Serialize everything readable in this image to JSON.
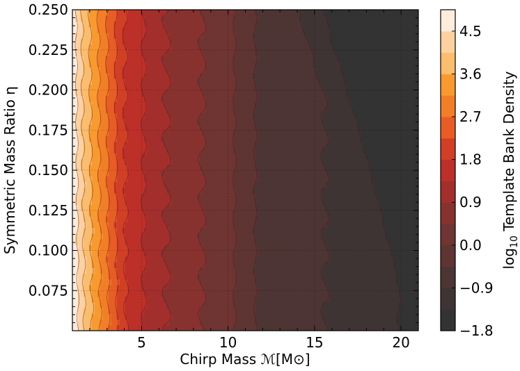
{
  "chart_data": {
    "type": "heatmap",
    "title": "",
    "xlabel": "Chirp Mass ℳ[M⊙]",
    "ylabel": "Symmetric Mass Ratio η",
    "colorbar_label": "log10 Template Bank Density",
    "colorbar_label_parts": {
      "base": "log",
      "subscript": "10",
      "rest": " Template Bank Density"
    },
    "xlim": [
      1.0,
      21.0
    ],
    "ylim": [
      0.05,
      0.25
    ],
    "x_ticks": [
      5,
      10,
      15,
      20
    ],
    "x_tick_labels": [
      "5",
      "10",
      "15",
      "20"
    ],
    "y_ticks": [
      0.075,
      0.1,
      0.125,
      0.15,
      0.175,
      0.2,
      0.225,
      0.25
    ],
    "y_tick_labels": [
      "0.075",
      "0.100",
      "0.125",
      "0.150",
      "0.175",
      "0.200",
      "0.225",
      "0.250"
    ],
    "colorbar_range": [
      -1.8,
      4.95
    ],
    "colorbar_ticks": [
      -1.8,
      -0.9,
      0.0,
      0.9,
      1.8,
      2.7,
      3.6,
      4.5
    ],
    "colorbar_tick_labels": [
      "−1.8",
      "−0.9",
      "0.0",
      "0.9",
      "1.8",
      "2.7",
      "3.6",
      "4.5"
    ],
    "levels": [
      -1.8,
      -1.35,
      -0.9,
      -0.45,
      0.0,
      0.45,
      0.9,
      1.35,
      1.8,
      2.25,
      2.7,
      3.15,
      3.6,
      4.05,
      4.5,
      4.95
    ],
    "colors": [
      "#333333",
      "#3f3434",
      "#4d3534",
      "#5e3533",
      "#6f3532",
      "#883230",
      "#a32f2c",
      "#bc3029",
      "#d13f26",
      "#e65e26",
      "#f27e28",
      "#f89a30",
      "#fbbd6e",
      "#fdd1a0",
      "#feecdd"
    ],
    "grid": true,
    "colormap": "gist_heat-like (dark grey to cream)",
    "profile_x": [
      1.0,
      1.5,
      2.0,
      2.5,
      3.0,
      3.5,
      4.0,
      5.0,
      6.0,
      8.0,
      10.0,
      11.0,
      12.0,
      15.0,
      18.0,
      21.0
    ],
    "profile_logdensity": [
      4.8,
      4.1,
      3.6,
      3.15,
      2.7,
      2.25,
      1.8,
      1.4,
      1.0,
      0.55,
      0.15,
      -0.25,
      -0.6,
      -0.85,
      -1.1,
      -1.5
    ]
  }
}
